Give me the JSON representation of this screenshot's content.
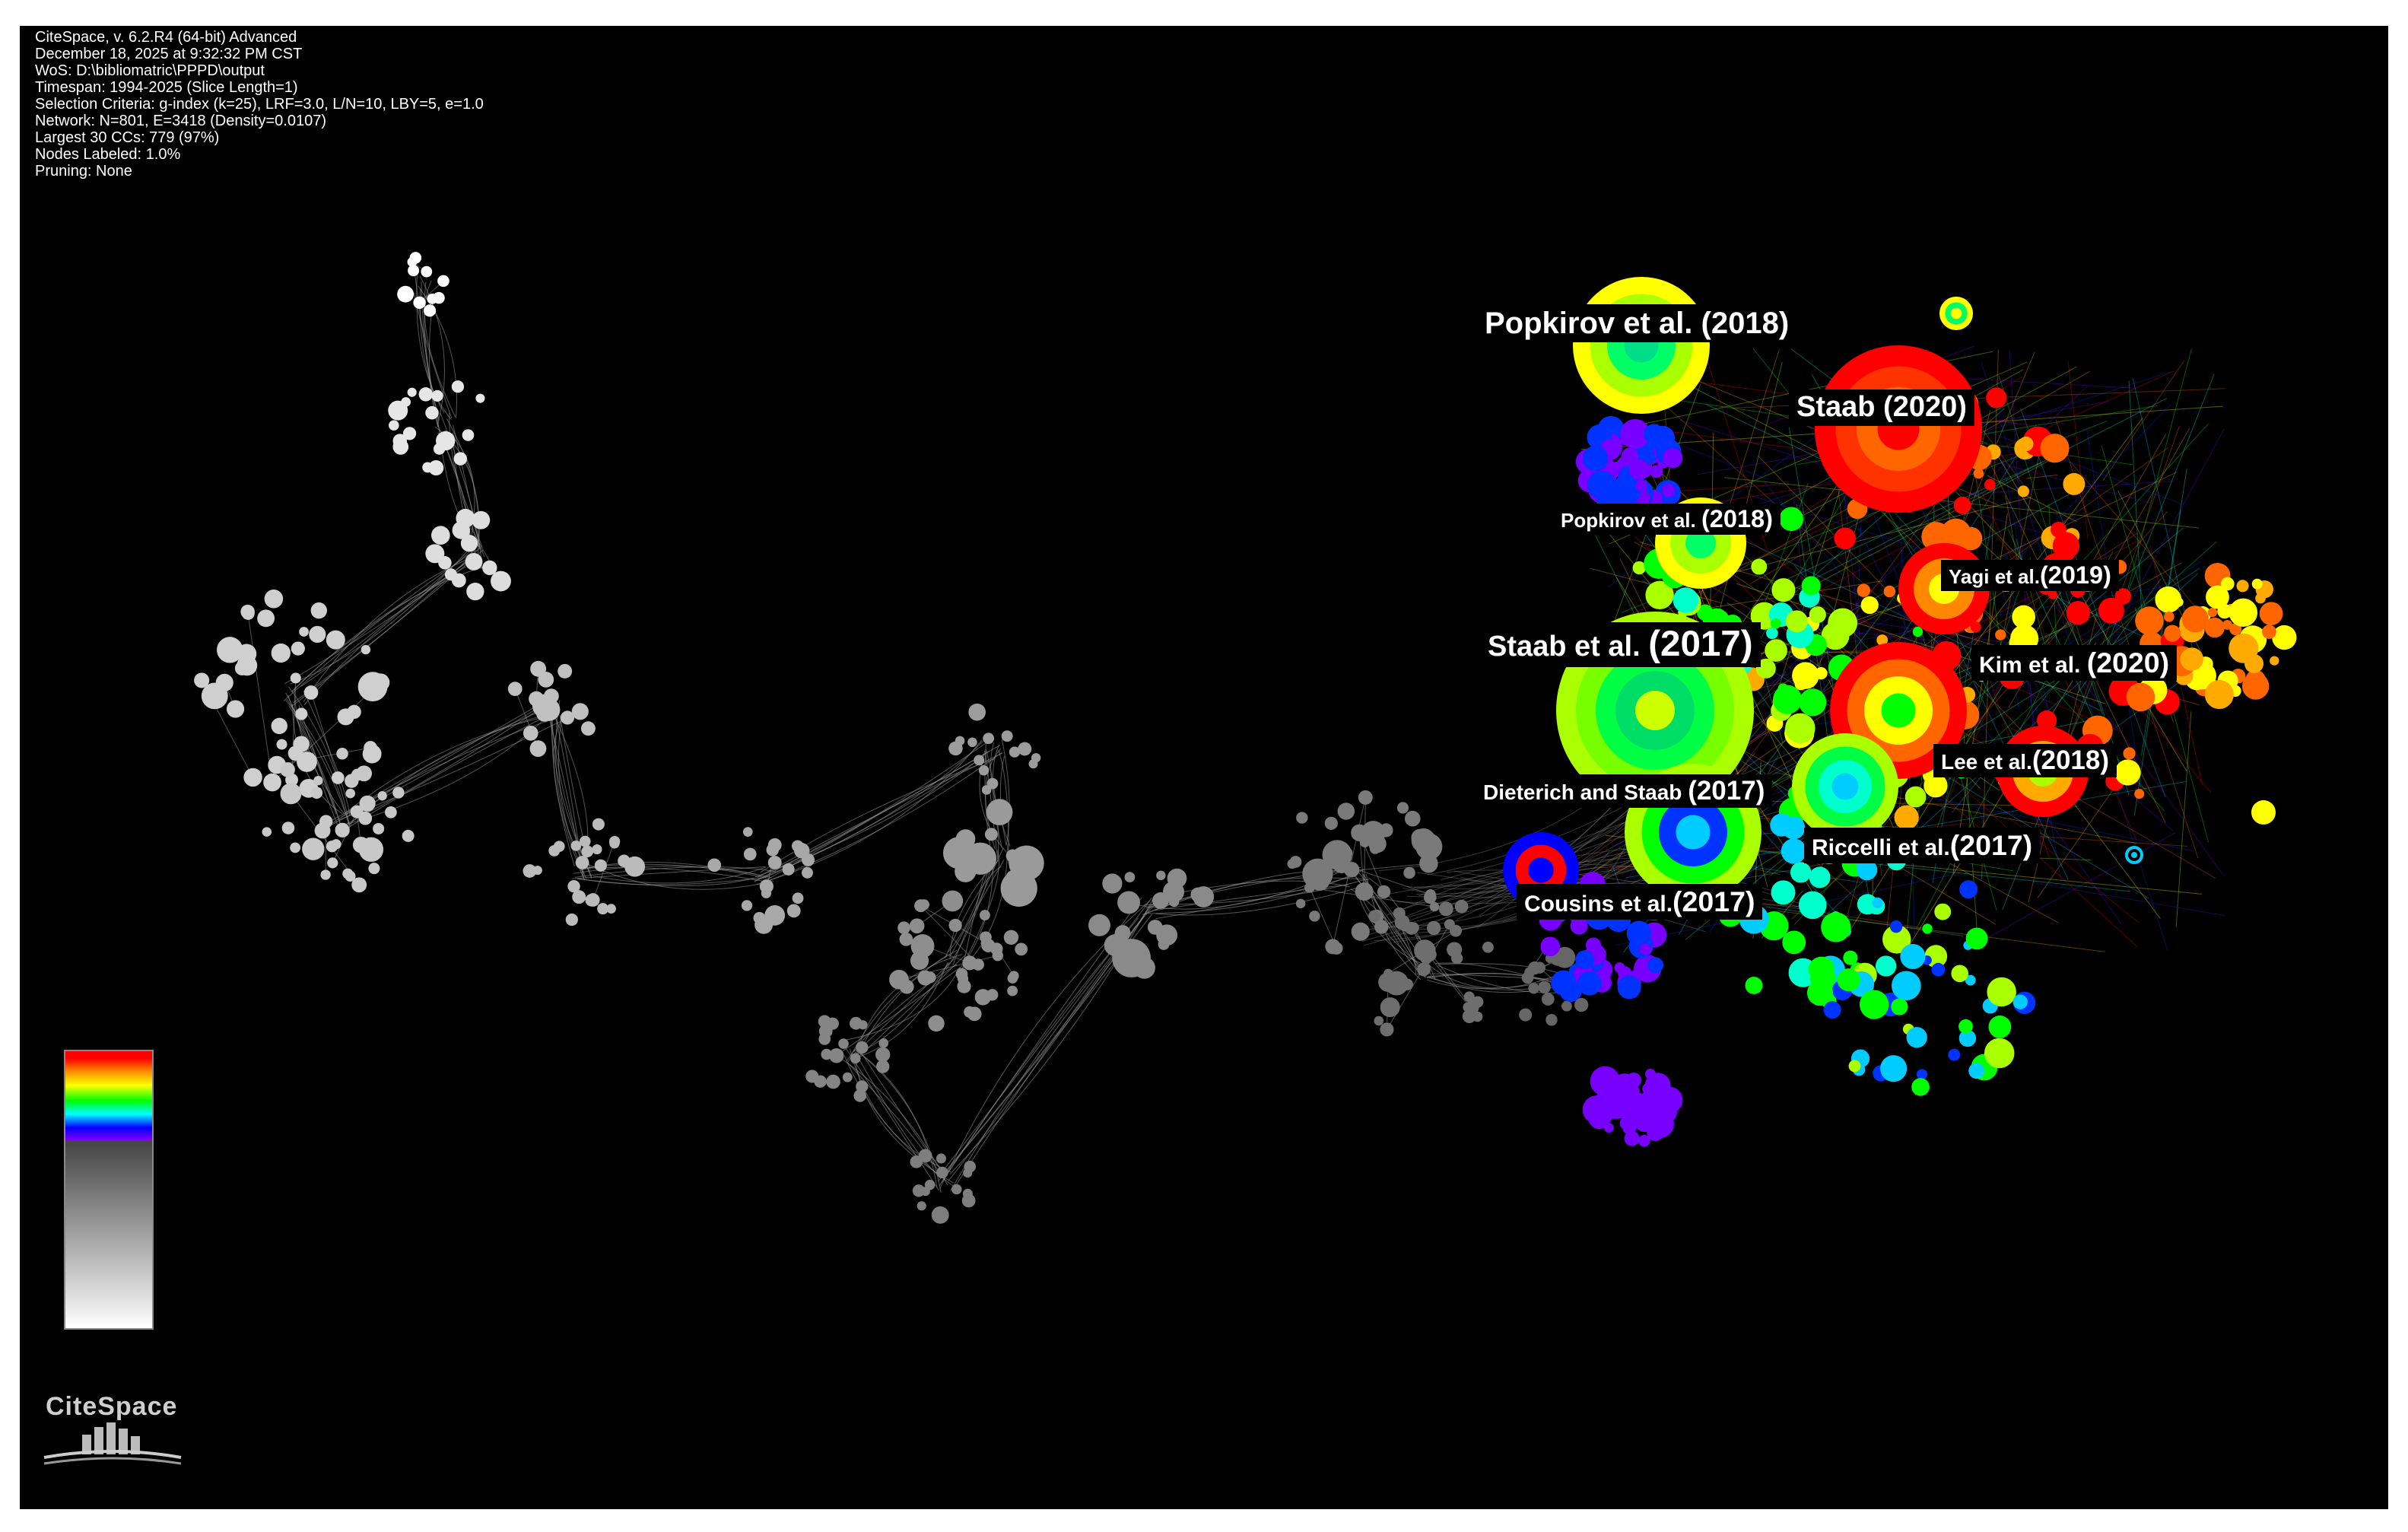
{
  "info": {
    "lines": [
      "CiteSpace, v. 6.2.R4 (64-bit) Advanced",
      "December 18, 2025 at 9:32:32 PM CST",
      "WoS: D:\\bibliomatric\\PPPD\\output",
      "Timespan: 1994-2025 (Slice Length=1)",
      "Selection Criteria: g-index (k=25), LRF=3.0, L/N=10, LBY=5, e=1.0",
      "Network: N=801, E=3418 (Density=0.0107)",
      "Largest 30 CCs: 779 (97%)",
      "Nodes Labeled: 1.0%",
      "Pruning: None"
    ]
  },
  "labels": [
    {
      "name": "Popkirov et al.",
      "year": "(2018)"
    },
    {
      "name": "Staab",
      "year": "(2020)"
    },
    {
      "name": "Popkirov et al.",
      "year": "(2018)"
    },
    {
      "name": "Yagi et al.",
      "year": "(2019)"
    },
    {
      "name": "Staab et al.",
      "year": "(2017)"
    },
    {
      "name": "Kim et al.",
      "year": "(2020)"
    },
    {
      "name": "Lee et al.",
      "year": "(2018)"
    },
    {
      "name": "Dieterich and Staab",
      "year": "(2017)"
    },
    {
      "name": "Riccelli et al.",
      "year": "(2017)"
    },
    {
      "name": "Cousins et al.",
      "year": "(2017)"
    }
  ],
  "logo": {
    "text": "CiteSpace"
  },
  "colors": {
    "background": "#000000",
    "gray_cluster": "#a0a0a0",
    "hot_palette": [
      "#ff0000",
      "#ff6600",
      "#ffaa00",
      "#ffff00",
      "#aaff00",
      "#00ff00",
      "#00ffcc",
      "#00ccff",
      "#0033ff",
      "#7700ff"
    ]
  }
}
